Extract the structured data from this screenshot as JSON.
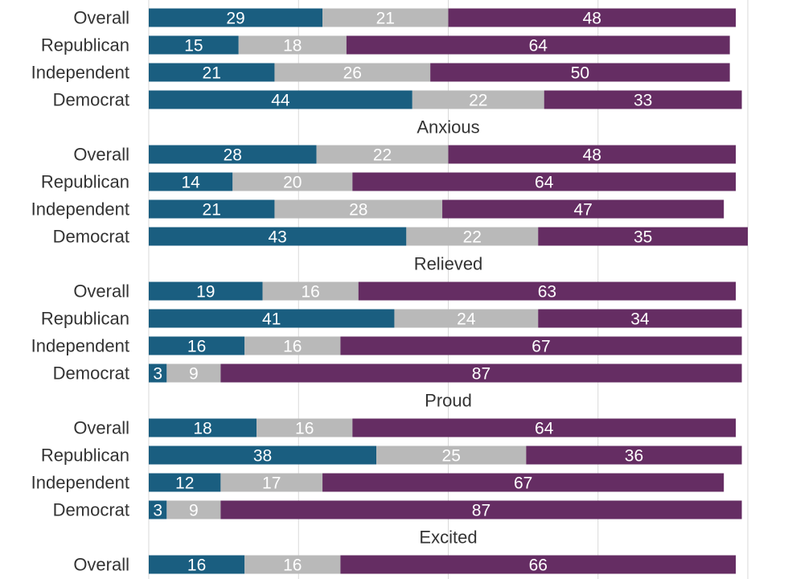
{
  "colors": {
    "series": [
      "#1a5e80",
      "#b9b9b9",
      "#652d63"
    ],
    "grid": "#d9d9d9",
    "label_text": "#333333",
    "segment_text": "#ffffff"
  },
  "chart_data": {
    "type": "bar",
    "orientation": "horizontal",
    "stacked": true,
    "xlim": [
      0,
      100
    ],
    "grid": true,
    "legend": "none",
    "series_count": 3,
    "groups": [
      {
        "title": "",
        "rows": [
          {
            "label": "Overall",
            "values": [
              29,
              21,
              48
            ]
          },
          {
            "label": "Republican",
            "values": [
              15,
              18,
              64
            ]
          },
          {
            "label": "Independent",
            "values": [
              21,
              26,
              50
            ]
          },
          {
            "label": "Democrat",
            "values": [
              44,
              22,
              33
            ]
          }
        ]
      },
      {
        "title": "Anxious",
        "rows": [
          {
            "label": "Overall",
            "values": [
              28,
              22,
              48
            ]
          },
          {
            "label": "Republican",
            "values": [
              14,
              20,
              64
            ]
          },
          {
            "label": "Independent",
            "values": [
              21,
              28,
              47
            ]
          },
          {
            "label": "Democrat",
            "values": [
              43,
              22,
              35
            ]
          }
        ]
      },
      {
        "title": "Relieved",
        "rows": [
          {
            "label": "Overall",
            "values": [
              19,
              16,
              63
            ]
          },
          {
            "label": "Republican",
            "values": [
              41,
              24,
              34
            ]
          },
          {
            "label": "Independent",
            "values": [
              16,
              16,
              67
            ]
          },
          {
            "label": "Democrat",
            "values": [
              3,
              9,
              87
            ]
          }
        ]
      },
      {
        "title": "Proud",
        "rows": [
          {
            "label": "Overall",
            "values": [
              18,
              16,
              64
            ]
          },
          {
            "label": "Republican",
            "values": [
              38,
              25,
              36
            ]
          },
          {
            "label": "Independent",
            "values": [
              12,
              17,
              67
            ]
          },
          {
            "label": "Democrat",
            "values": [
              3,
              9,
              87
            ]
          }
        ]
      },
      {
        "title": "Excited",
        "rows": [
          {
            "label": "Overall",
            "values": [
              16,
              16,
              66
            ]
          }
        ]
      }
    ]
  }
}
